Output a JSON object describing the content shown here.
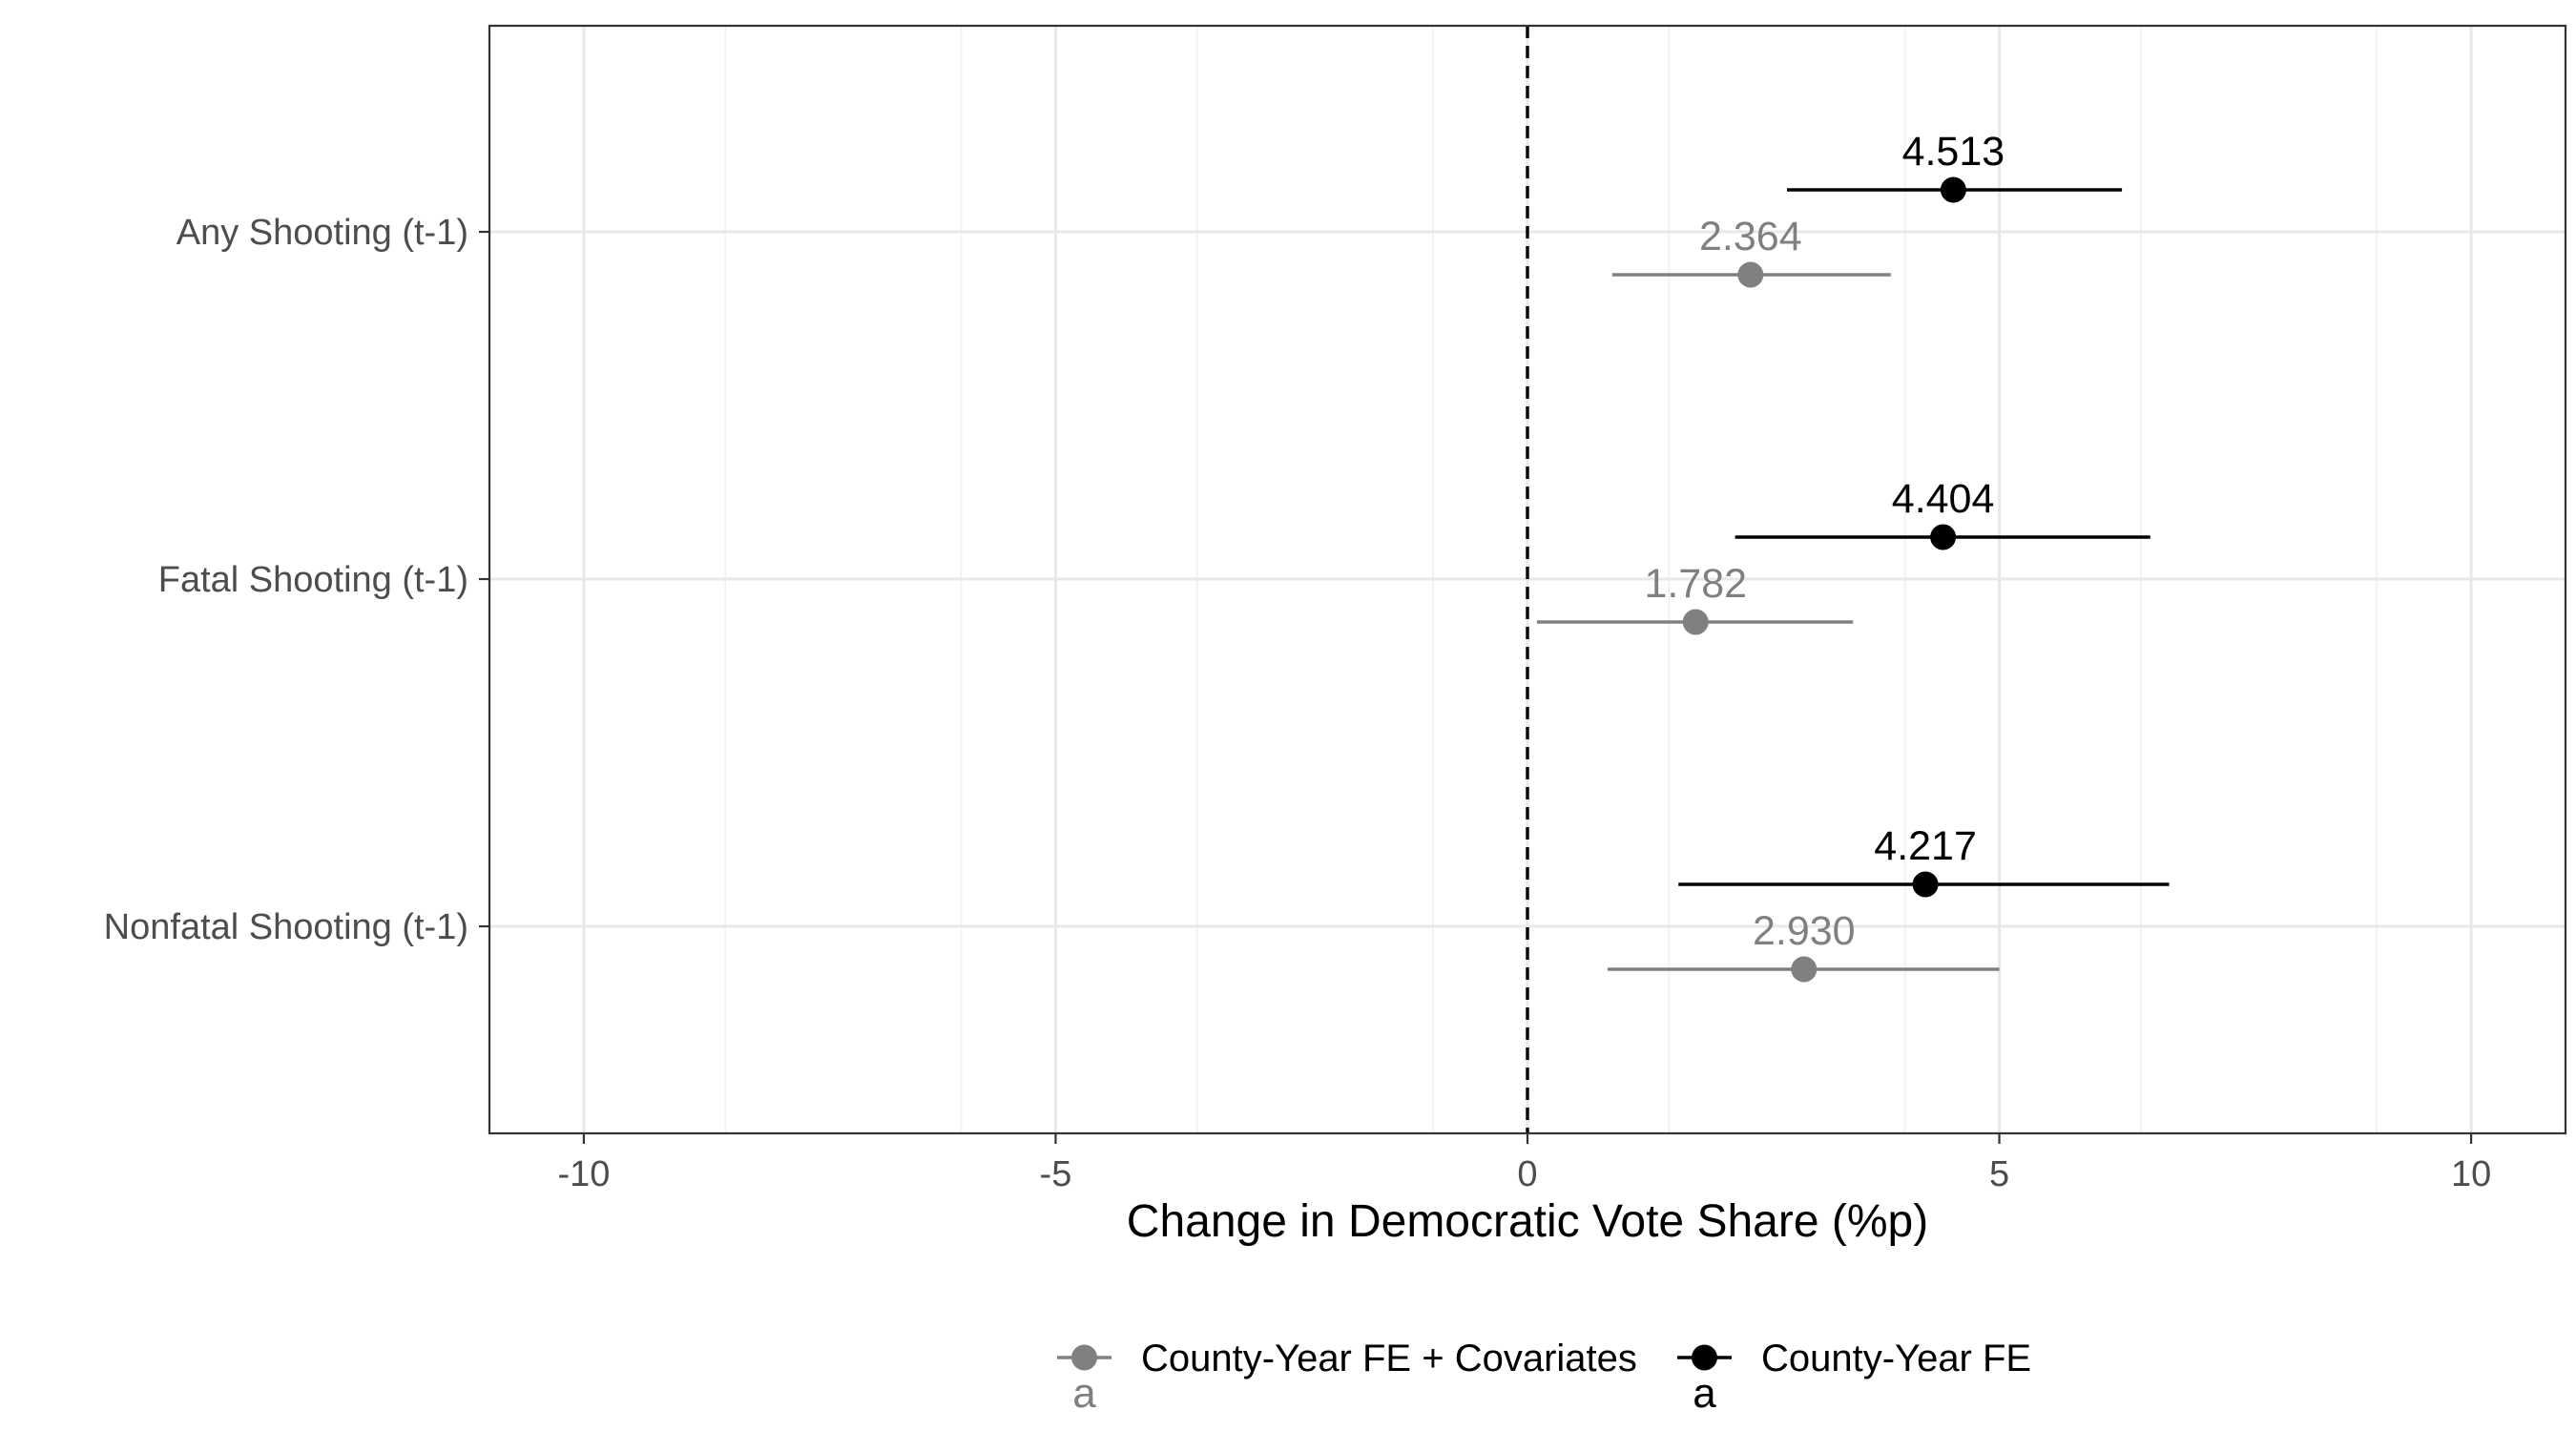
{
  "chart_data": {
    "type": "scatter",
    "subtype": "coefficient-plot",
    "title": "",
    "xlabel": "Change in Democratic Vote Share (%p)",
    "ylabel": "",
    "xlim": [
      -11,
      11
    ],
    "xticks": [
      -10,
      -5,
      0,
      5,
      10
    ],
    "xtick_labels": [
      "-10",
      "-5",
      "0",
      "5",
      "10"
    ],
    "reference_line": {
      "x": 0,
      "style": "dashed"
    },
    "grid": true,
    "legend_position": "bottom",
    "categories": [
      "Any Shooting (t-1)",
      "Fatal Shooting (t-1)",
      "Nonfatal Shooting (t-1)"
    ],
    "series": [
      {
        "name": "County-Year FE",
        "color": "#000000",
        "estimates": [
          4.513,
          4.404,
          4.217
        ],
        "labels": [
          "4.513",
          "4.404",
          "4.217"
        ],
        "ci_low": [
          2.75,
          2.2,
          1.6
        ],
        "ci_high": [
          6.3,
          6.6,
          6.8
        ]
      },
      {
        "name": "County-Year FE + Covariates",
        "color": "#808080",
        "estimates": [
          2.364,
          1.782,
          2.93
        ],
        "labels": [
          "2.364",
          "1.782",
          "2.930"
        ],
        "ci_low": [
          0.9,
          0.1,
          0.85
        ],
        "ci_high": [
          3.85,
          3.45,
          5.0
        ]
      }
    ],
    "legend": [
      {
        "name": "County-Year FE + Covariates",
        "color": "#808080",
        "glyph": "a"
      },
      {
        "name": "County-Year FE",
        "color": "#000000",
        "glyph": "a"
      }
    ]
  }
}
